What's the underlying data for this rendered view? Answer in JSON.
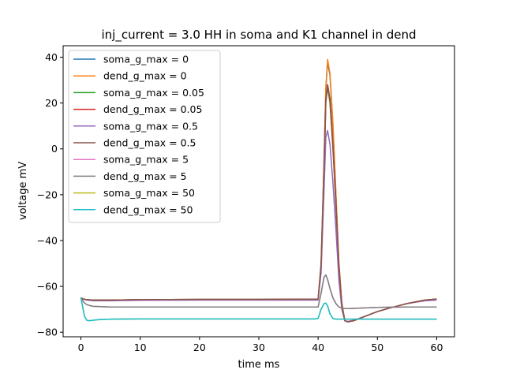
{
  "chart_data": {
    "type": "line",
    "title": "inj_current = 3.0 HH in soma and K1 channel in dend",
    "xlabel": "time ms",
    "ylabel": "voltage mV",
    "xlim": [
      -3,
      63
    ],
    "ylim": [
      -82,
      45
    ],
    "xticks": [
      0,
      10,
      20,
      30,
      40,
      50,
      60
    ],
    "yticks": [
      -80,
      -60,
      -40,
      -20,
      0,
      20,
      40
    ],
    "grid": false,
    "legend_position": "top-left",
    "series": [
      {
        "name": "soma_g_max = 0",
        "color": "#1f77b4",
        "linewidth": 1.5,
        "x": [
          0,
          0.5,
          1,
          2,
          5,
          10,
          20,
          30,
          40,
          40.5,
          41,
          41.3,
          41.6,
          42,
          42.5,
          43,
          43.5,
          44,
          44.5,
          45,
          46,
          48,
          50,
          52,
          55,
          58,
          60
        ],
        "y": [
          -65,
          -65.6,
          -65.8,
          -66,
          -66,
          -65.8,
          -65.7,
          -65.7,
          -65.6,
          -50,
          -5,
          26,
          38,
          32,
          10,
          -20,
          -50,
          -68,
          -75,
          -75.5,
          -75,
          -73,
          -71,
          -69.5,
          -67.5,
          -66,
          -65.5
        ]
      },
      {
        "name": "dend_g_max = 0",
        "color": "#ff7f0e",
        "linewidth": 1.5,
        "x": [
          0,
          0.5,
          1,
          2,
          5,
          10,
          20,
          30,
          40,
          40.5,
          41,
          41.3,
          41.6,
          42,
          42.5,
          43,
          43.5,
          44,
          44.5,
          45,
          46,
          48,
          50,
          52,
          55,
          58,
          60
        ],
        "y": [
          -65,
          -65.6,
          -65.8,
          -66,
          -66,
          -65.8,
          -65.7,
          -65.7,
          -65.6,
          -50,
          -5,
          27,
          39,
          33,
          11,
          -19,
          -49,
          -67,
          -75,
          -75.5,
          -75,
          -73,
          -71,
          -69.5,
          -67.5,
          -66,
          -65.5
        ]
      },
      {
        "name": "soma_g_max = 0.05",
        "color": "#2ca02c",
        "linewidth": 1.5,
        "x": [
          0,
          0.5,
          1,
          2,
          5,
          10,
          20,
          30,
          40,
          40.5,
          41,
          41.3,
          41.6,
          42,
          42.5,
          43,
          43.5,
          44,
          44.5,
          45,
          46,
          48,
          50,
          52,
          55,
          58,
          60
        ],
        "y": [
          -65,
          -65.6,
          -65.8,
          -66,
          -66,
          -65.8,
          -65.7,
          -65.7,
          -65.6,
          -52,
          -12,
          20,
          27,
          20,
          0,
          -25,
          -52,
          -68,
          -75,
          -75.5,
          -75,
          -73,
          -71,
          -69.5,
          -67.5,
          -66,
          -65.5
        ]
      },
      {
        "name": "dend_g_max = 0.05",
        "color": "#d62728",
        "linewidth": 1.5,
        "x": [
          0,
          0.5,
          1,
          2,
          5,
          10,
          20,
          30,
          40,
          40.5,
          41,
          41.3,
          41.6,
          42,
          42.5,
          43,
          43.5,
          44,
          44.5,
          45,
          46,
          48,
          50,
          52,
          55,
          58,
          60
        ],
        "y": [
          -65,
          -65.6,
          -65.8,
          -66,
          -66,
          -65.8,
          -65.7,
          -65.7,
          -65.6,
          -52,
          -11,
          21,
          28,
          21,
          1,
          -24,
          -51,
          -68,
          -75,
          -75.5,
          -75,
          -73,
          -71,
          -69.5,
          -67.5,
          -66,
          -65.5
        ]
      },
      {
        "name": "soma_g_max = 0.5",
        "color": "#9467bd",
        "linewidth": 1.5,
        "x": [
          0,
          0.5,
          1,
          2,
          5,
          10,
          20,
          30,
          40,
          40.5,
          41,
          41.3,
          41.6,
          42,
          42.5,
          43,
          43.5,
          44,
          44.5,
          45,
          46,
          48,
          50,
          52,
          55,
          58,
          60
        ],
        "y": [
          -65,
          -65.7,
          -66,
          -66.3,
          -66.3,
          -66.1,
          -66,
          -66,
          -66,
          -54,
          -18,
          5,
          8,
          2,
          -15,
          -35,
          -57,
          -70,
          -75,
          -75.3,
          -74.8,
          -73,
          -71,
          -69.5,
          -67.5,
          -66.3,
          -66
        ]
      },
      {
        "name": "dend_g_max = 0.5",
        "color": "#8c564b",
        "linewidth": 1.5,
        "x": [
          0,
          0.5,
          1,
          2,
          5,
          10,
          20,
          30,
          40,
          40.5,
          41,
          41.3,
          41.6,
          42,
          42.5,
          43,
          43.5,
          44,
          44.5,
          45,
          46,
          48,
          50,
          52,
          55,
          58,
          60
        ],
        "y": [
          -65,
          -65.6,
          -65.8,
          -66,
          -66,
          -65.8,
          -65.7,
          -65.7,
          -65.6,
          -51,
          -8,
          22,
          28,
          22,
          2,
          -23,
          -51,
          -68,
          -75,
          -75.5,
          -75,
          -73,
          -71,
          -69.5,
          -67.5,
          -66,
          -65.5
        ]
      },
      {
        "name": "soma_g_max = 5",
        "color": "#e377c2",
        "linewidth": 1.5,
        "x": [
          0,
          0.5,
          1,
          2,
          5,
          10,
          20,
          30,
          40,
          40.5,
          41,
          41.3,
          41.6,
          42,
          42.5,
          43,
          43.5,
          44,
          44.5,
          45,
          46,
          48,
          50,
          52,
          55,
          58,
          60
        ],
        "y": [
          -65,
          -67,
          -68,
          -68.7,
          -69,
          -69,
          -69,
          -69,
          -69,
          -63,
          -56,
          -55,
          -57,
          -61,
          -65,
          -67.5,
          -69,
          -69.5,
          -69.7,
          -69.7,
          -69.6,
          -69.4,
          -69.2,
          -69.1,
          -69,
          -69,
          -69
        ]
      },
      {
        "name": "dend_g_max = 5",
        "color": "#7f7f7f",
        "linewidth": 1.5,
        "x": [
          0,
          0.5,
          1,
          2,
          5,
          10,
          20,
          30,
          40,
          40.5,
          41,
          41.3,
          41.6,
          42,
          42.5,
          43,
          43.5,
          44,
          44.5,
          45,
          46,
          48,
          50,
          52,
          55,
          58,
          60
        ],
        "y": [
          -65,
          -67,
          -68,
          -68.7,
          -69,
          -69,
          -69,
          -69,
          -69,
          -63,
          -56,
          -55,
          -57,
          -61,
          -65,
          -67.5,
          -69,
          -69.5,
          -69.7,
          -69.7,
          -69.6,
          -69.4,
          -69.2,
          -69.1,
          -69,
          -69,
          -69
        ]
      },
      {
        "name": "soma_g_max = 50",
        "color": "#bcbd22",
        "linewidth": 1.5,
        "x": [
          0,
          0.3,
          0.6,
          1,
          1.5,
          2,
          3,
          5,
          10,
          20,
          30,
          39.5,
          40,
          40.5,
          41,
          41.3,
          41.6,
          42,
          42.5,
          43,
          44,
          46,
          50,
          55,
          60
        ],
        "y": [
          -65,
          -69,
          -73,
          -74.8,
          -75,
          -74.8,
          -74.5,
          -74.3,
          -74.2,
          -74.2,
          -74.2,
          -74.2,
          -74,
          -70,
          -67.5,
          -67.3,
          -68.5,
          -72,
          -74,
          -74.3,
          -74.3,
          -74.3,
          -74.3,
          -74.3,
          -74.3
        ]
      },
      {
        "name": "dend_g_max = 50",
        "color": "#17becf",
        "linewidth": 1.5,
        "x": [
          0,
          0.3,
          0.6,
          1,
          1.5,
          2,
          3,
          5,
          10,
          20,
          30,
          39.5,
          40,
          40.5,
          41,
          41.3,
          41.6,
          42,
          42.5,
          43,
          44,
          46,
          50,
          55,
          60
        ],
        "y": [
          -65,
          -69,
          -73,
          -74.8,
          -75,
          -74.8,
          -74.5,
          -74.3,
          -74.2,
          -74.2,
          -74.2,
          -74.2,
          -74,
          -70,
          -67.5,
          -67.3,
          -68.5,
          -72,
          -74,
          -74.3,
          -74.3,
          -74.3,
          -74.3,
          -74.3,
          -74.3
        ]
      }
    ]
  }
}
